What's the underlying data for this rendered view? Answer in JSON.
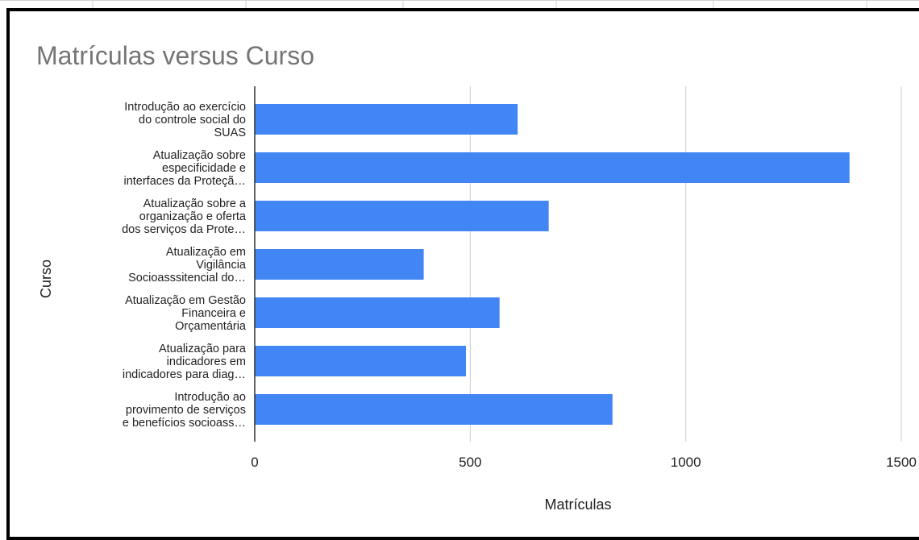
{
  "chart_data": {
    "type": "bar",
    "orientation": "horizontal",
    "title": "Matrículas versus Curso",
    "xlabel": "Matrículas",
    "ylabel": "Curso",
    "xlim": [
      0,
      1500
    ],
    "xticks": [
      "0",
      "500",
      "1000",
      "1500"
    ],
    "grid": true,
    "legend": "none",
    "categories": [
      [
        "Introdução ao exercício",
        "do controle social do",
        "SUAS"
      ],
      [
        "Atualização sobre",
        "especificidade e",
        "interfaces da Proteçã…"
      ],
      [
        "Atualização sobre a",
        "organização e oferta",
        "dos serviços da Prote…"
      ],
      [
        "Atualização em",
        "Vigilância",
        "Socioasssitencial do…"
      ],
      [
        "Atualização em Gestão",
        "Financeira e",
        "Orçamentária"
      ],
      [
        "Atualização para",
        "indicadores em",
        "indicadores para diag…"
      ],
      [
        "Introdução ao",
        "provimento de serviços",
        "e benefícios socioass…"
      ]
    ],
    "values": [
      610,
      1380,
      682,
      392,
      568,
      490,
      830
    ]
  },
  "colors": {
    "bar": "#4285f4",
    "title": "#757575",
    "text": "#222222",
    "grid": "#cccccc",
    "axis": "#333333",
    "frame": "#000000"
  }
}
